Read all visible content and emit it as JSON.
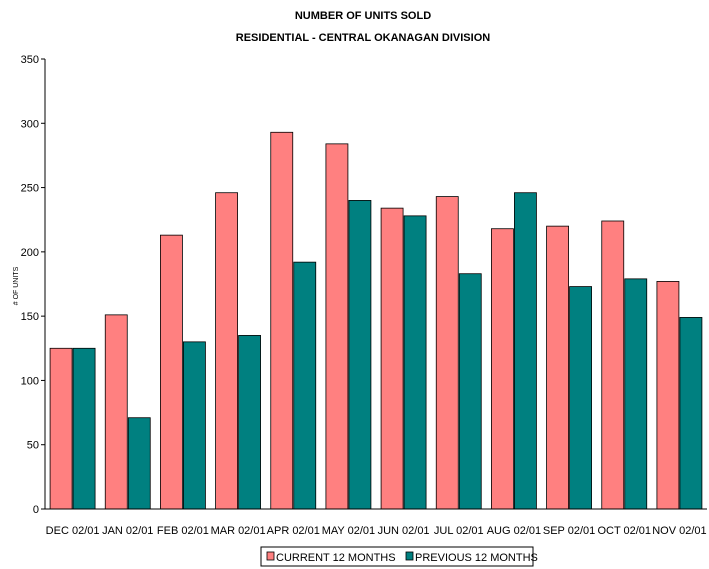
{
  "chart_data": {
    "type": "bar",
    "title": "NUMBER OF UNITS SOLD",
    "subtitle": "RESIDENTIAL - CENTRAL OKANAGAN DIVISION",
    "xlabel": "",
    "ylabel": "# OF UNITS",
    "ylim": [
      0,
      350
    ],
    "yticks": [
      0,
      50,
      100,
      150,
      200,
      250,
      300,
      350
    ],
    "grid": false,
    "legend_position": "bottom",
    "categories": [
      "DEC 02/01",
      "JAN 02/01",
      "FEB 02/01",
      "MAR 02/01",
      "APR 02/01",
      "MAY 02/01",
      "JUN 02/01",
      "JUL 02/01",
      "AUG 02/01",
      "SEP 02/01",
      "OCT 02/01",
      "NOV 02/01"
    ],
    "series": [
      {
        "name": "CURRENT 12 MONTHS",
        "color": "#ff8080",
        "values": [
          125,
          151,
          213,
          246,
          293,
          284,
          234,
          243,
          218,
          220,
          224,
          177
        ]
      },
      {
        "name": "PREVIOUS 12 MONTHS",
        "color": "#008080",
        "values": [
          125,
          71,
          130,
          135,
          192,
          240,
          228,
          183,
          246,
          173,
          179,
          149
        ]
      }
    ]
  }
}
